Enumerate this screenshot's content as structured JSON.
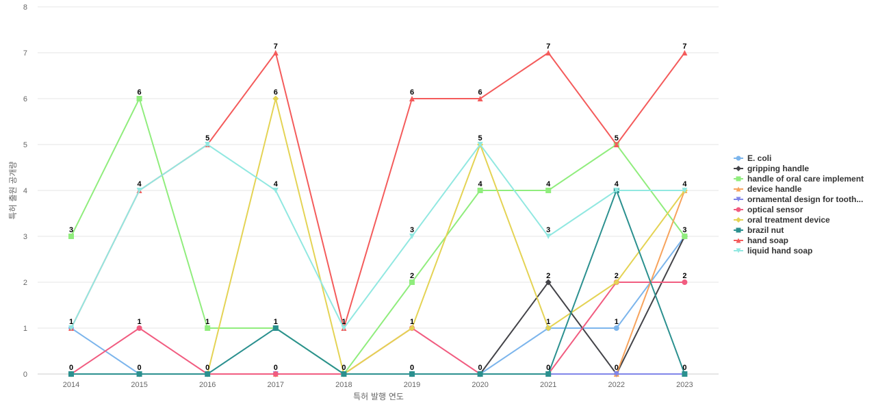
{
  "chart_data": {
    "type": "line",
    "title": "",
    "xlabel": "특허 발행 연도",
    "ylabel": "특허 출원 공개량",
    "ylim": [
      0,
      8
    ],
    "yticks": [
      0,
      1,
      2,
      3,
      4,
      5,
      6,
      7,
      8
    ],
    "grid": true,
    "legend_position": "right",
    "x": [
      "2014",
      "2015",
      "2016",
      "2017",
      "2018",
      "2019",
      "2020",
      "2021",
      "2022",
      "2023"
    ],
    "series": [
      {
        "name": "E. coli",
        "color": "#7cb5ec",
        "marker": "circle",
        "values": [
          1,
          0,
          0,
          0,
          0,
          0,
          0,
          1,
          1,
          3
        ]
      },
      {
        "name": "gripping handle",
        "color": "#434348",
        "marker": "diamond",
        "values": [
          0,
          0,
          0,
          0,
          0,
          0,
          0,
          2,
          0,
          3
        ]
      },
      {
        "name": "handle of oral care implement",
        "color": "#90ed7d",
        "marker": "square",
        "values": [
          3,
          6,
          1,
          1,
          0,
          2,
          4,
          4,
          5,
          3
        ]
      },
      {
        "name": "device handle",
        "color": "#f7a35c",
        "marker": "triangle",
        "values": [
          0,
          0,
          0,
          0,
          0,
          0,
          0,
          0,
          0,
          4
        ]
      },
      {
        "name": "ornamental design for tooth...",
        "color": "#8085e9",
        "marker": "triangle-down",
        "values": [
          0,
          0,
          0,
          0,
          0,
          0,
          0,
          0,
          0,
          0
        ]
      },
      {
        "name": "optical sensor",
        "color": "#f15c80",
        "marker": "circle",
        "values": [
          0,
          1,
          0,
          0,
          0,
          1,
          0,
          0,
          2,
          2
        ]
      },
      {
        "name": "oral treatment device",
        "color": "#e4d354",
        "marker": "diamond",
        "values": [
          0,
          0,
          0,
          6,
          0,
          1,
          5,
          1,
          2,
          4
        ]
      },
      {
        "name": "brazil nut",
        "color": "#2b908f",
        "marker": "square",
        "values": [
          0,
          0,
          0,
          1,
          0,
          0,
          0,
          0,
          4,
          0
        ]
      },
      {
        "name": "hand soap",
        "color": "#f45b5b",
        "marker": "triangle",
        "values": [
          1,
          4,
          5,
          7,
          1,
          6,
          6,
          7,
          5,
          7
        ]
      },
      {
        "name": "liquid hand soap",
        "color": "#91e8e1",
        "marker": "triangle-down",
        "values": [
          1,
          4,
          5,
          4,
          1,
          3,
          5,
          3,
          4,
          4
        ]
      }
    ],
    "data_labels": {
      "2014": [
        {
          "text": "3",
          "value": 3
        },
        {
          "text": "1",
          "value": 1
        },
        {
          "text": "0",
          "value": 0
        }
      ],
      "2015": [
        {
          "text": "6",
          "value": 6
        },
        {
          "text": "4",
          "value": 4
        },
        {
          "text": "1",
          "value": 1
        },
        {
          "text": "0",
          "value": 0
        }
      ],
      "2016": [
        {
          "text": "5",
          "value": 5
        },
        {
          "text": "1",
          "value": 1
        },
        {
          "text": "0",
          "value": 0
        }
      ],
      "2017": [
        {
          "text": "7",
          "value": 7
        },
        {
          "text": "6",
          "value": 6
        },
        {
          "text": "4",
          "value": 4
        },
        {
          "text": "1",
          "value": 1
        },
        {
          "text": "0",
          "value": 0
        }
      ],
      "2018": [
        {
          "text": "1",
          "value": 1
        },
        {
          "text": "0",
          "value": 0
        }
      ],
      "2019": [
        {
          "text": "6",
          "value": 6
        },
        {
          "text": "3",
          "value": 3
        },
        {
          "text": "2",
          "value": 2
        },
        {
          "text": "1",
          "value": 1
        },
        {
          "text": "0",
          "value": 0
        }
      ],
      "2020": [
        {
          "text": "6",
          "value": 6
        },
        {
          "text": "5",
          "value": 5
        },
        {
          "text": "4",
          "value": 4
        },
        {
          "text": "0",
          "value": 0
        }
      ],
      "2021": [
        {
          "text": "7",
          "value": 7
        },
        {
          "text": "4",
          "value": 4
        },
        {
          "text": "3",
          "value": 3
        },
        {
          "text": "2",
          "value": 2
        },
        {
          "text": "1",
          "value": 1
        },
        {
          "text": "0",
          "value": 0
        }
      ],
      "2022": [
        {
          "text": "5",
          "value": 5
        },
        {
          "text": "4",
          "value": 4
        },
        {
          "text": "2",
          "value": 2
        },
        {
          "text": "1",
          "value": 1
        },
        {
          "text": "0",
          "value": 0
        }
      ],
      "2023": [
        {
          "text": "7",
          "value": 7
        },
        {
          "text": "4",
          "value": 4
        },
        {
          "text": "3",
          "value": 3
        },
        {
          "text": "2",
          "value": 2
        },
        {
          "text": "0",
          "value": 0
        }
      ]
    }
  }
}
